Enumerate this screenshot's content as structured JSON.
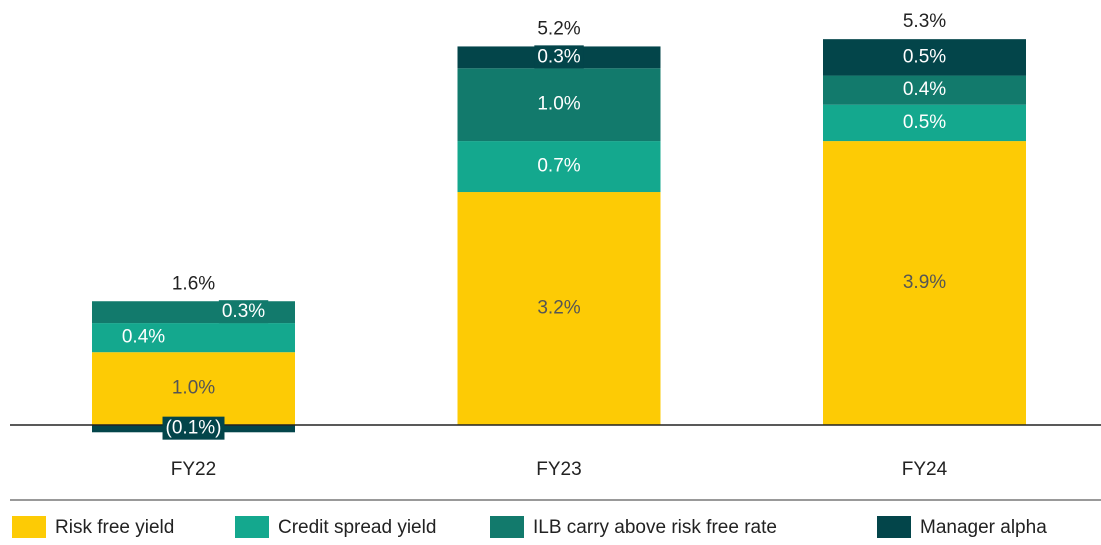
{
  "chart_data": {
    "type": "stacked_bar",
    "categories": [
      "FY22",
      "FY23",
      "FY24"
    ],
    "series": [
      {
        "name": "Risk free yield",
        "color": "#fdcb05",
        "values": [
          1.0,
          3.2,
          3.9
        ],
        "value_labels": [
          "1.0%",
          "3.2%",
          "3.9%"
        ]
      },
      {
        "name": "Credit spread yield",
        "color": "#14a88e",
        "values": [
          0.4,
          0.7,
          0.5
        ],
        "value_labels": [
          "0.4%",
          "0.7%",
          "0.5%"
        ]
      },
      {
        "name": "ILB carry above risk free rate",
        "color": "#127a6c",
        "values": [
          0.3,
          1.0,
          0.4
        ],
        "value_labels": [
          "0.3%",
          "1.0%",
          "0.4%"
        ]
      },
      {
        "name": "Manager alpha",
        "color": "#03454a",
        "values": [
          -0.1,
          0.3,
          0.5
        ],
        "value_labels": [
          "(0.1%)",
          "0.3%",
          "0.5%"
        ]
      }
    ],
    "totals": [
      1.6,
      5.2,
      5.3
    ],
    "total_labels": [
      "1.6%",
      "5.2%",
      "5.3%"
    ]
  }
}
